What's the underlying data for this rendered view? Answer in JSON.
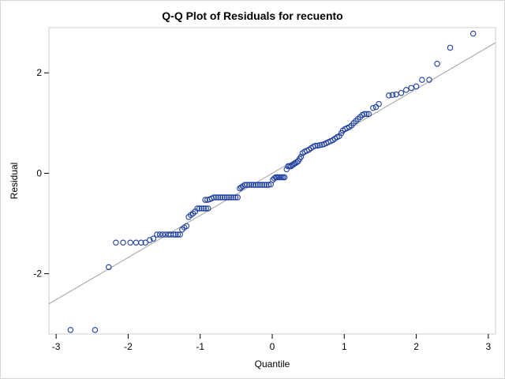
{
  "chart_data": {
    "type": "scatter",
    "title": "Q-Q Plot of Residuals for recuento",
    "xlabel": "Quantile",
    "ylabel": "Residual",
    "xlim": [
      -3.1,
      3.1
    ],
    "ylim": [
      -3.2,
      2.9
    ],
    "x_ticks": [
      "-3",
      "-2",
      "-1",
      "0",
      "1",
      "2",
      "3"
    ],
    "y_ticks": [
      "-2",
      "0",
      "2"
    ],
    "grid": false,
    "legend": "none",
    "reference_line": {
      "x": [
        -3.1,
        3.1
      ],
      "y": [
        -2.6,
        2.6
      ],
      "color": "#a0a0a0"
    },
    "marker_color": "#1f3f9f",
    "points": [
      [
        -2.8,
        -3.12
      ],
      [
        -2.46,
        -3.12
      ],
      [
        -2.27,
        -1.87
      ],
      [
        -2.17,
        -1.38
      ],
      [
        -2.07,
        -1.38
      ],
      [
        -1.97,
        -1.38
      ],
      [
        -1.89,
        -1.38
      ],
      [
        -1.82,
        -1.38
      ],
      [
        -1.76,
        -1.38
      ],
      [
        -1.7,
        -1.33
      ],
      [
        -1.65,
        -1.3
      ],
      [
        -1.6,
        -1.22
      ],
      [
        -1.56,
        -1.22
      ],
      [
        -1.52,
        -1.22
      ],
      [
        -1.48,
        -1.22
      ],
      [
        -1.44,
        -1.22
      ],
      [
        -1.41,
        -1.22
      ],
      [
        -1.37,
        -1.22
      ],
      [
        -1.34,
        -1.22
      ],
      [
        -1.31,
        -1.22
      ],
      [
        -1.28,
        -1.22
      ],
      [
        -1.25,
        -1.12
      ],
      [
        -1.22,
        -1.08
      ],
      [
        -1.19,
        -1.05
      ],
      [
        -1.16,
        -0.87
      ],
      [
        -1.13,
        -0.83
      ],
      [
        -1.1,
        -0.8
      ],
      [
        -1.07,
        -0.76
      ],
      [
        -1.04,
        -0.7
      ],
      [
        -1.01,
        -0.7
      ],
      [
        -0.98,
        -0.7
      ],
      [
        -0.95,
        -0.7
      ],
      [
        -0.92,
        -0.7
      ],
      [
        -0.89,
        -0.7
      ],
      [
        -0.93,
        -0.53
      ],
      [
        -0.9,
        -0.53
      ],
      [
        -0.87,
        -0.52
      ],
      [
        -0.84,
        -0.5
      ],
      [
        -0.81,
        -0.48
      ],
      [
        -0.78,
        -0.48
      ],
      [
        -0.75,
        -0.48
      ],
      [
        -0.72,
        -0.48
      ],
      [
        -0.69,
        -0.48
      ],
      [
        -0.66,
        -0.48
      ],
      [
        -0.63,
        -0.48
      ],
      [
        -0.6,
        -0.48
      ],
      [
        -0.57,
        -0.48
      ],
      [
        -0.54,
        -0.48
      ],
      [
        -0.51,
        -0.48
      ],
      [
        -0.48,
        -0.48
      ],
      [
        -0.45,
        -0.3
      ],
      [
        -0.43,
        -0.28
      ],
      [
        -0.41,
        -0.26
      ],
      [
        -0.38,
        -0.23
      ],
      [
        -0.35,
        -0.23
      ],
      [
        -0.32,
        -0.23
      ],
      [
        -0.29,
        -0.23
      ],
      [
        -0.26,
        -0.23
      ],
      [
        -0.23,
        -0.23
      ],
      [
        -0.2,
        -0.23
      ],
      [
        -0.17,
        -0.23
      ],
      [
        -0.14,
        -0.23
      ],
      [
        -0.11,
        -0.23
      ],
      [
        -0.08,
        -0.23
      ],
      [
        -0.05,
        -0.23
      ],
      [
        -0.02,
        -0.22
      ],
      [
        0.01,
        -0.13
      ],
      [
        0.03,
        -0.1
      ],
      [
        0.05,
        -0.08
      ],
      [
        0.07,
        -0.08
      ],
      [
        0.09,
        -0.08
      ],
      [
        0.11,
        -0.08
      ],
      [
        0.13,
        -0.08
      ],
      [
        0.15,
        -0.08
      ],
      [
        0.17,
        -0.08
      ],
      [
        0.2,
        0.08
      ],
      [
        0.22,
        0.14
      ],
      [
        0.24,
        0.14
      ],
      [
        0.26,
        0.14
      ],
      [
        0.28,
        0.16
      ],
      [
        0.3,
        0.18
      ],
      [
        0.32,
        0.2
      ],
      [
        0.34,
        0.22
      ],
      [
        0.36,
        0.24
      ],
      [
        0.38,
        0.29
      ],
      [
        0.4,
        0.33
      ],
      [
        0.42,
        0.4
      ],
      [
        0.45,
        0.43
      ],
      [
        0.48,
        0.45
      ],
      [
        0.51,
        0.47
      ],
      [
        0.54,
        0.5
      ],
      [
        0.57,
        0.53
      ],
      [
        0.6,
        0.55
      ],
      [
        0.63,
        0.55
      ],
      [
        0.66,
        0.56
      ],
      [
        0.69,
        0.57
      ],
      [
        0.72,
        0.58
      ],
      [
        0.75,
        0.6
      ],
      [
        0.78,
        0.62
      ],
      [
        0.81,
        0.64
      ],
      [
        0.84,
        0.66
      ],
      [
        0.87,
        0.69
      ],
      [
        0.9,
        0.72
      ],
      [
        0.93,
        0.74
      ],
      [
        0.96,
        0.8
      ],
      [
        0.98,
        0.85
      ],
      [
        1.01,
        0.88
      ],
      [
        1.04,
        0.9
      ],
      [
        1.07,
        0.92
      ],
      [
        1.1,
        0.95
      ],
      [
        1.13,
        1.0
      ],
      [
        1.16,
        1.04
      ],
      [
        1.19,
        1.08
      ],
      [
        1.22,
        1.12
      ],
      [
        1.25,
        1.16
      ],
      [
        1.28,
        1.18
      ],
      [
        1.31,
        1.18
      ],
      [
        1.34,
        1.18
      ],
      [
        1.4,
        1.3
      ],
      [
        1.44,
        1.32
      ],
      [
        1.48,
        1.38
      ],
      [
        1.62,
        1.55
      ],
      [
        1.67,
        1.56
      ],
      [
        1.72,
        1.57
      ],
      [
        1.79,
        1.6
      ],
      [
        1.86,
        1.66
      ],
      [
        1.93,
        1.7
      ],
      [
        2.0,
        1.73
      ],
      [
        2.08,
        1.86
      ],
      [
        2.18,
        1.86
      ],
      [
        2.29,
        2.18
      ],
      [
        2.47,
        2.5
      ],
      [
        2.79,
        2.78
      ]
    ]
  }
}
